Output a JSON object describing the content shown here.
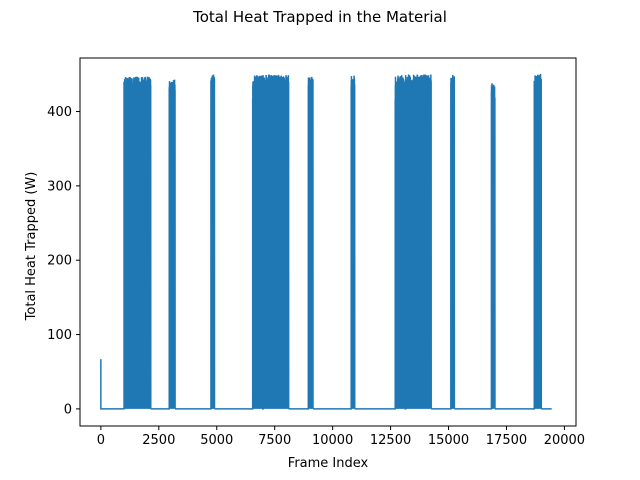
{
  "chart_data": {
    "type": "line",
    "title": "Total Heat Trapped in the Material",
    "xlabel": "Frame Index",
    "ylabel": "Total Heat Trapped (W)",
    "xlim": [
      -900,
      20500
    ],
    "ylim": [
      -23,
      472
    ],
    "xticks": [
      0,
      2500,
      5000,
      7500,
      10000,
      12500,
      15000,
      17500,
      20000
    ],
    "yticks": [
      0,
      100,
      200,
      300,
      400
    ],
    "grid": false,
    "color": "#1f77b4",
    "baseline": 0,
    "initial_spike": {
      "x": 0,
      "y": 67
    },
    "x_end": 19450,
    "bursts": [
      {
        "start": 1000,
        "end": 2150,
        "peak": 447
      },
      {
        "start": 2950,
        "end": 3200,
        "peak": 443
      },
      {
        "start": 4750,
        "end": 4900,
        "peak": 450
      },
      {
        "start": 6550,
        "end": 6950,
        "peak": 449
      },
      {
        "start": 7000,
        "end": 8100,
        "peak": 450
      },
      {
        "start": 8950,
        "end": 9150,
        "peak": 447
      },
      {
        "start": 10800,
        "end": 10950,
        "peak": 449
      },
      {
        "start": 12700,
        "end": 13100,
        "peak": 449
      },
      {
        "start": 13150,
        "end": 14250,
        "peak": 450
      },
      {
        "start": 15100,
        "end": 15250,
        "peak": 450
      },
      {
        "start": 16850,
        "end": 17000,
        "peak": 442
      },
      {
        "start": 18700,
        "end": 19000,
        "peak": 451
      }
    ]
  }
}
